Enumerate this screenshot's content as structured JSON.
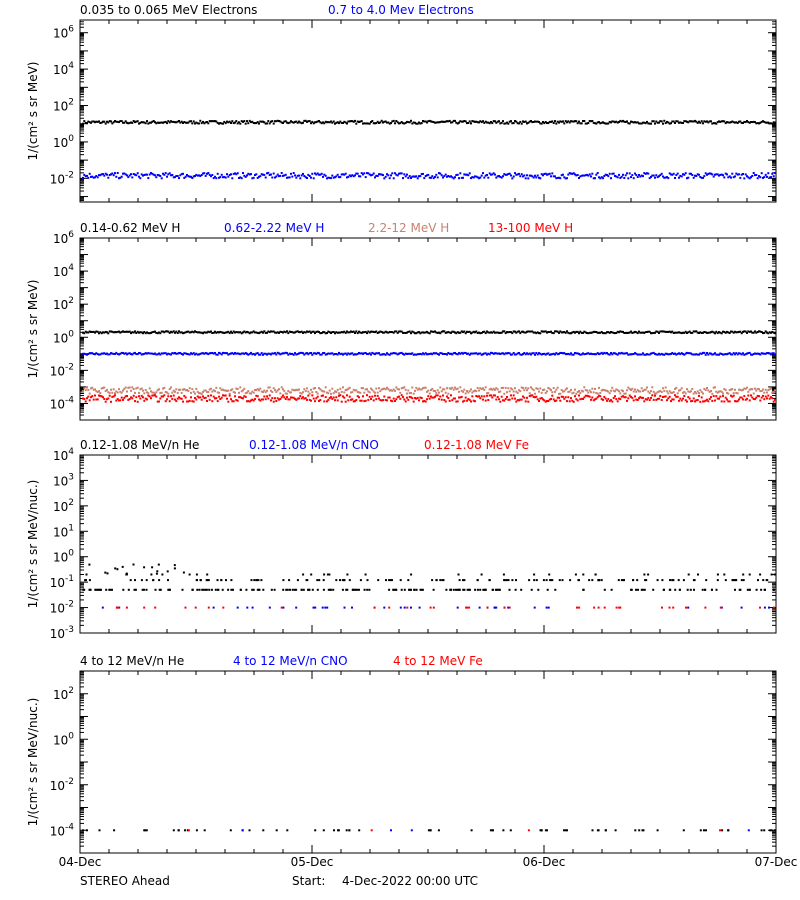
{
  "footer": {
    "x_ticks": [
      "04-Dec",
      "05-Dec",
      "06-Dec",
      "07-Dec"
    ],
    "spacecraft": "STEREO Ahead",
    "start_label": "Start:",
    "start_value": "4-Dec-2022 00:00 UTC"
  },
  "colors": {
    "black": "#000000",
    "blue": "#0000ff",
    "tan": "#c8826e",
    "red": "#ff0000"
  },
  "chart_data": [
    {
      "type": "scatter",
      "ylabel": "1/(cm² s sr MeV)",
      "y_scale": "log",
      "ylim": [
        0.0005,
        5000000
      ],
      "y_ticks": [
        {
          "base": "10",
          "exp": "-2"
        },
        {
          "base": "10",
          "exp": "0"
        },
        {
          "base": "10",
          "exp": "2"
        },
        {
          "base": "10",
          "exp": "4"
        },
        {
          "base": "10",
          "exp": "6"
        }
      ],
      "x_ticks": [
        "04-Dec",
        "05-Dec",
        "06-Dec",
        "07-Dec"
      ],
      "series": [
        {
          "name": "0.035 to 0.065 MeV Electrons",
          "color": "#000000",
          "level": 12,
          "scatter_decades": 0.08
        },
        {
          "name": "0.7 to 4.0 Mev Electrons",
          "color": "#0000ff",
          "level": 0.014,
          "scatter_decades": 0.15
        }
      ]
    },
    {
      "type": "scatter",
      "ylabel": "1/(cm² s sr MeV)",
      "y_scale": "log",
      "ylim": [
        1e-05,
        1000000
      ],
      "y_ticks": [
        {
          "base": "10",
          "exp": "-4"
        },
        {
          "base": "10",
          "exp": "-2"
        },
        {
          "base": "10",
          "exp": "0"
        },
        {
          "base": "10",
          "exp": "2"
        },
        {
          "base": "10",
          "exp": "4"
        },
        {
          "base": "10",
          "exp": "6"
        }
      ],
      "x_ticks": [
        "04-Dec",
        "05-Dec",
        "06-Dec",
        "07-Dec"
      ],
      "series": [
        {
          "name": "0.14-0.62 MeV H",
          "color": "#000000",
          "level": 2.0,
          "scatter_decades": 0.06
        },
        {
          "name": "0.62-2.22 MeV H",
          "color": "#0000ff",
          "level": 0.1,
          "scatter_decades": 0.06
        },
        {
          "name": "2.2-12 MeV H",
          "color": "#c8826e",
          "level": 0.0006,
          "scatter_decades": 0.2
        },
        {
          "name": "13-100 MeV H",
          "color": "#ff0000",
          "level": 0.0002,
          "scatter_decades": 0.2
        }
      ]
    },
    {
      "type": "scatter",
      "ylabel": "1/(cm² s sr MeV/nuc.)",
      "y_scale": "log",
      "ylim": [
        0.001,
        10000
      ],
      "y_ticks": [
        {
          "base": "10",
          "exp": "-3"
        },
        {
          "base": "10",
          "exp": "-2"
        },
        {
          "base": "10",
          "exp": "-1"
        },
        {
          "base": "10",
          "exp": "0"
        },
        {
          "base": "10",
          "exp": "1"
        },
        {
          "base": "10",
          "exp": "2"
        },
        {
          "base": "10",
          "exp": "3"
        },
        {
          "base": "10",
          "exp": "4"
        }
      ],
      "x_ticks": [
        "04-Dec",
        "05-Dec",
        "06-Dec",
        "07-Dec"
      ],
      "series": [
        {
          "name": "0.12-1.08 MeV/n He",
          "color": "#000000",
          "level": 0.05,
          "scatter_decades": 0.3
        },
        {
          "name": "0.12-1.08 MeV/n CNO",
          "color": "#0000ff",
          "level": 0.01,
          "scatter_decades": 0.0
        },
        {
          "name": "0.12-1.08 MeV Fe",
          "color": "#ff0000",
          "level": 0.01,
          "scatter_decades": 0.0
        }
      ]
    },
    {
      "type": "scatter",
      "ylabel": "1/(cm² s sr MeV/nuc.)",
      "y_scale": "log",
      "ylim": [
        1e-05,
        1000
      ],
      "y_ticks": [
        {
          "base": "10",
          "exp": "-4"
        },
        {
          "base": "10",
          "exp": "-2"
        },
        {
          "base": "10",
          "exp": "0"
        },
        {
          "base": "10",
          "exp": "2"
        }
      ],
      "x_ticks": [
        "04-Dec",
        "05-Dec",
        "06-Dec",
        "07-Dec"
      ],
      "series": [
        {
          "name": "4 to 12 MeV/n He",
          "color": "#000000",
          "level": 0.0001,
          "scatter_decades": 0.0
        },
        {
          "name": "4 to 12 MeV/n CNO",
          "color": "#0000ff",
          "level": 0.0001,
          "scatter_decades": 0.0
        },
        {
          "name": "4 to 12 MeV Fe",
          "color": "#ff0000",
          "level": 0.0001,
          "scatter_decades": 0.0
        }
      ]
    }
  ]
}
